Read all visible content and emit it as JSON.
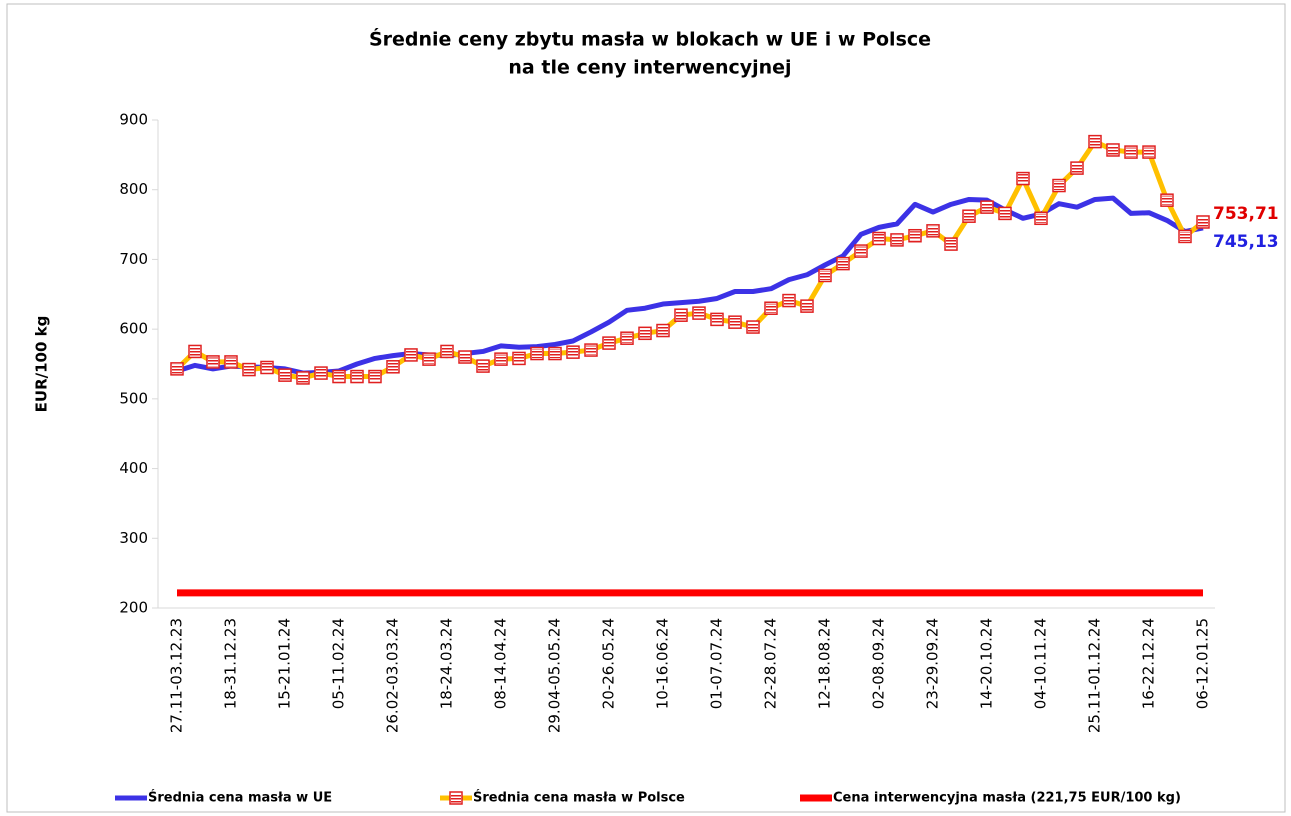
{
  "chart_data": {
    "type": "line",
    "title": "Średnie ceny zbytu masła w blokach w UE i w Polsce",
    "subtitle": "na tle ceny interwencyjnej",
    "y_label": "EUR/100 kg",
    "categories": [
      "27.11-03.12.23",
      null,
      null,
      "18-31.12.23",
      null,
      null,
      "15-21.01.24",
      null,
      null,
      "05-11.02.24",
      null,
      null,
      "26.02-03.03.24",
      null,
      null,
      "18-24.03.24",
      null,
      null,
      "08-14.04.24",
      null,
      null,
      "29.04-05.05.24",
      null,
      null,
      "20-26.05.24",
      null,
      null,
      "10-16.06.24",
      null,
      null,
      "01-07.07.24",
      null,
      null,
      "22-28.07.24",
      null,
      null,
      "12-18.08.24",
      null,
      null,
      "02-08.09.24",
      null,
      null,
      "23-29.09.24",
      null,
      null,
      "14-20.10.24",
      null,
      null,
      "04-10.11.24",
      null,
      null,
      "25.11-01.12.24",
      null,
      null,
      "16-22.12.24",
      null,
      null,
      "06-12.01.25"
    ],
    "ylim": [
      200,
      900
    ],
    "yticks": [
      200,
      300,
      400,
      500,
      600,
      700,
      800,
      900
    ],
    "grid": false,
    "legend": "bottom",
    "series": [
      {
        "name": "Średnia cena masła w UE",
        "color": "#3c32e6",
        "markers": false,
        "values": [
          540,
          548,
          543,
          547,
          546,
          545,
          543,
          537,
          538,
          540,
          550,
          558,
          562,
          565,
          563,
          562,
          565,
          568,
          576,
          574,
          575,
          578,
          583,
          596,
          610,
          627,
          630,
          636,
          638,
          640,
          644,
          654,
          654,
          658,
          671,
          678,
          692,
          705,
          736,
          746,
          751,
          779,
          768,
          779,
          786,
          785,
          771,
          759,
          765,
          780,
          775,
          786,
          788,
          766,
          767,
          756,
          740,
          745.13
        ],
        "value_labels": [
          null,
          null,
          null,
          null,
          null,
          null,
          null,
          null,
          null,
          null,
          null,
          null,
          null,
          null,
          null,
          null,
          null,
          null,
          null,
          null,
          null,
          null,
          null,
          null,
          null,
          null,
          null,
          null,
          null,
          null,
          null,
          null,
          null,
          null,
          null,
          null,
          null,
          null,
          null,
          null,
          null,
          null,
          null,
          null,
          null,
          null,
          null,
          null,
          null,
          null,
          null,
          null,
          null,
          null,
          null,
          null,
          null,
          "745,13"
        ],
        "value_label_color": "#2020e0"
      },
      {
        "name": "Średnia cena masła w Polsce",
        "color": "#ffc000",
        "markers": true,
        "marker_color": "#e02020",
        "values": [
          543,
          568,
          553,
          553,
          542,
          545,
          534,
          530,
          537,
          532,
          532,
          532,
          546,
          563,
          557,
          568,
          560,
          547,
          557,
          558,
          565,
          565,
          567,
          570,
          580,
          587,
          594,
          598,
          620,
          623,
          614,
          610,
          603,
          630,
          641,
          633,
          677,
          694,
          712,
          730,
          728,
          734,
          741,
          722,
          762,
          775,
          766,
          816,
          759,
          806,
          831,
          869,
          857,
          854,
          854,
          785,
          733,
          753.71
        ],
        "value_labels": [
          null,
          null,
          null,
          null,
          null,
          null,
          null,
          null,
          null,
          null,
          null,
          null,
          null,
          null,
          null,
          null,
          null,
          null,
          null,
          null,
          null,
          null,
          null,
          null,
          null,
          null,
          null,
          null,
          null,
          null,
          null,
          null,
          null,
          null,
          null,
          null,
          null,
          null,
          null,
          null,
          null,
          null,
          null,
          null,
          null,
          null,
          null,
          null,
          null,
          null,
          null,
          null,
          null,
          null,
          null,
          null,
          null,
          "753,71"
        ],
        "value_label_color": "#e00000"
      },
      {
        "name": "Cena interwencyjna masła (221,75 EUR/100 kg)",
        "color": "#ff0000",
        "markers": false,
        "values": [
          221.75,
          221.75,
          221.75,
          221.75,
          221.75,
          221.75,
          221.75,
          221.75,
          221.75,
          221.75,
          221.75,
          221.75,
          221.75,
          221.75,
          221.75,
          221.75,
          221.75,
          221.75,
          221.75,
          221.75,
          221.75,
          221.75,
          221.75,
          221.75,
          221.75,
          221.75,
          221.75,
          221.75,
          221.75,
          221.75,
          221.75,
          221.75,
          221.75,
          221.75,
          221.75,
          221.75,
          221.75,
          221.75,
          221.75,
          221.75,
          221.75,
          221.75,
          221.75,
          221.75,
          221.75,
          221.75,
          221.75,
          221.75,
          221.75,
          221.75,
          221.75,
          221.75,
          221.75,
          221.75,
          221.75,
          221.75,
          221.75,
          221.75
        ]
      }
    ]
  }
}
